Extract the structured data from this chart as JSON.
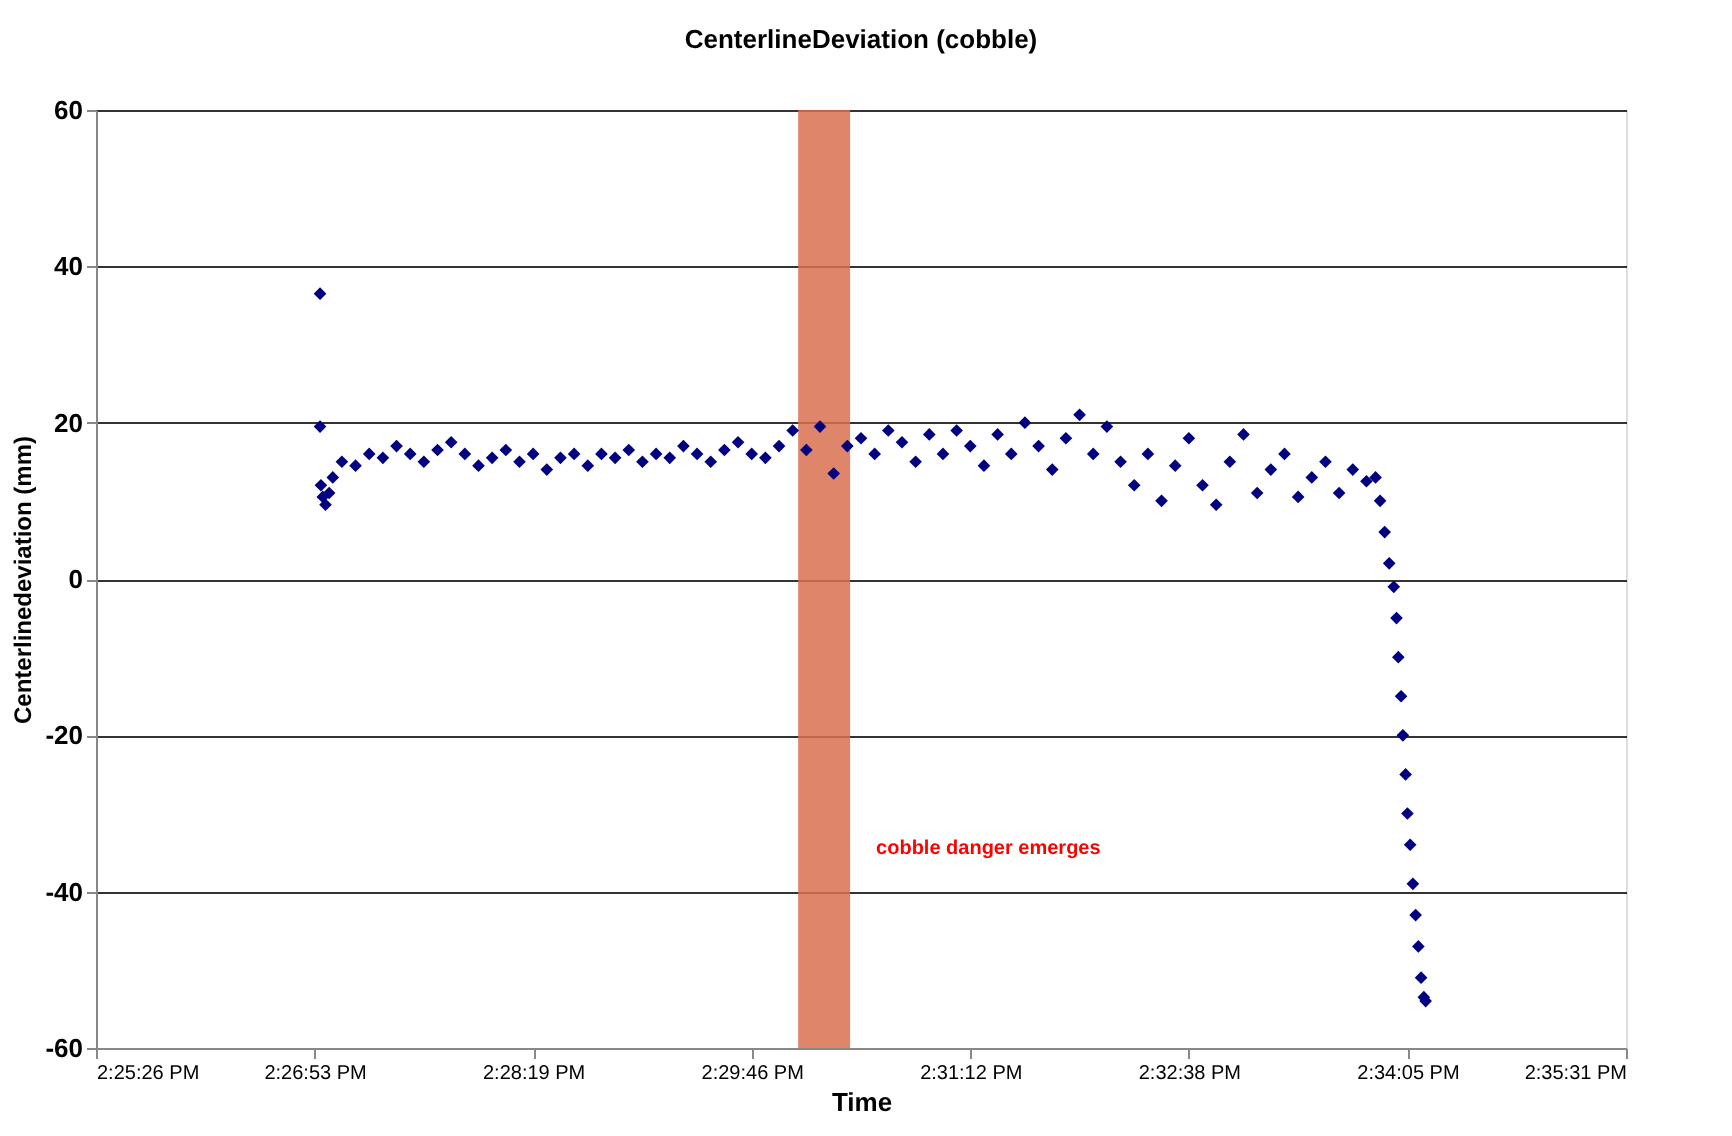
{
  "chart_data": {
    "type": "scatter",
    "title": "CenterlineDeviation (cobble)",
    "xlabel": "Time",
    "ylabel": "Centerlinedeviation (mm)",
    "xlim": [
      14.424,
      14.592
    ],
    "ylim": [
      -60,
      60
    ],
    "xticks": [
      {
        "value": 14.424,
        "label": "2:25:26 PM"
      },
      {
        "value": 14.448,
        "label": "2:26:53 PM"
      },
      {
        "value": 14.472,
        "label": "2:28:19 PM"
      },
      {
        "value": 14.496,
        "label": "2:29:46 PM"
      },
      {
        "value": 14.52,
        "label": "2:31:12 PM"
      },
      {
        "value": 14.544,
        "label": "2:32:38 PM"
      },
      {
        "value": 14.568,
        "label": "2:34:05 PM"
      },
      {
        "value": 14.592,
        "label": "2:35:31 PM"
      }
    ],
    "yticks": [
      -60,
      -40,
      -20,
      0,
      20,
      40,
      60
    ],
    "grid": "y",
    "marker": "diamond",
    "series": [
      {
        "color": "#000080",
        "x": [
          14.4486,
          14.4486,
          14.4487,
          14.4489,
          14.4492,
          14.4496,
          14.45,
          14.451,
          14.4525,
          14.454,
          14.4555,
          14.457,
          14.4585,
          14.46,
          14.4615,
          14.463,
          14.4645,
          14.466,
          14.4675,
          14.469,
          14.4705,
          14.472,
          14.4735,
          14.475,
          14.4765,
          14.478,
          14.4795,
          14.481,
          14.4825,
          14.484,
          14.4855,
          14.487,
          14.4885,
          14.49,
          14.4915,
          14.493,
          14.4945,
          14.496,
          14.4975,
          14.499,
          14.5005,
          14.502,
          14.5035,
          14.505,
          14.5065,
          14.508,
          14.5095,
          14.511,
          14.5125,
          14.514,
          14.5155,
          14.517,
          14.5185,
          14.52,
          14.5215,
          14.523,
          14.5245,
          14.526,
          14.5275,
          14.529,
          14.5305,
          14.532,
          14.5335,
          14.535,
          14.5365,
          14.538,
          14.5395,
          14.541,
          14.5425,
          14.544,
          14.5455,
          14.547,
          14.5485,
          14.55,
          14.5515,
          14.553,
          14.5545,
          14.556,
          14.5575,
          14.559,
          14.5605,
          14.562,
          14.5635,
          14.5645,
          14.565,
          14.5655,
          14.566,
          14.5665,
          14.5668,
          14.567,
          14.5673,
          14.5675,
          14.5678,
          14.568,
          14.5683,
          14.5686,
          14.5689,
          14.5692,
          14.5695,
          14.5698,
          14.57
        ],
        "values": [
          36.5,
          19.5,
          12,
          10.5,
          9.5,
          11,
          13,
          15,
          14.5,
          16,
          15.5,
          17,
          16,
          15,
          16.5,
          17.5,
          16,
          14.5,
          15.5,
          16.5,
          15,
          16,
          14,
          15.5,
          16,
          14.5,
          16,
          15.5,
          16.5,
          15,
          16,
          15.5,
          17,
          16,
          15,
          16.5,
          17.5,
          16,
          15.5,
          17,
          19,
          16.5,
          19.5,
          13.5,
          17,
          18,
          16,
          19,
          17.5,
          15,
          18.5,
          16,
          19,
          17,
          14.5,
          18.5,
          16,
          20,
          17,
          14,
          18,
          21,
          16,
          19.5,
          15,
          12,
          16,
          10,
          14.5,
          18,
          12,
          9.5,
          15,
          18.5,
          11,
          14,
          16,
          10.5,
          13,
          15,
          11,
          14,
          12.5,
          13,
          10,
          6,
          2,
          -1,
          -5,
          -10,
          -15,
          -20,
          -25,
          -30,
          -34,
          -39,
          -43,
          -47,
          -51,
          -53.5,
          -54
        ]
      }
    ],
    "bands": [
      {
        "axis": "x",
        "from": 14.5011,
        "to": 14.5068,
        "color": "#d9704f"
      }
    ],
    "annotations": [
      "cobble danger emerges"
    ]
  }
}
